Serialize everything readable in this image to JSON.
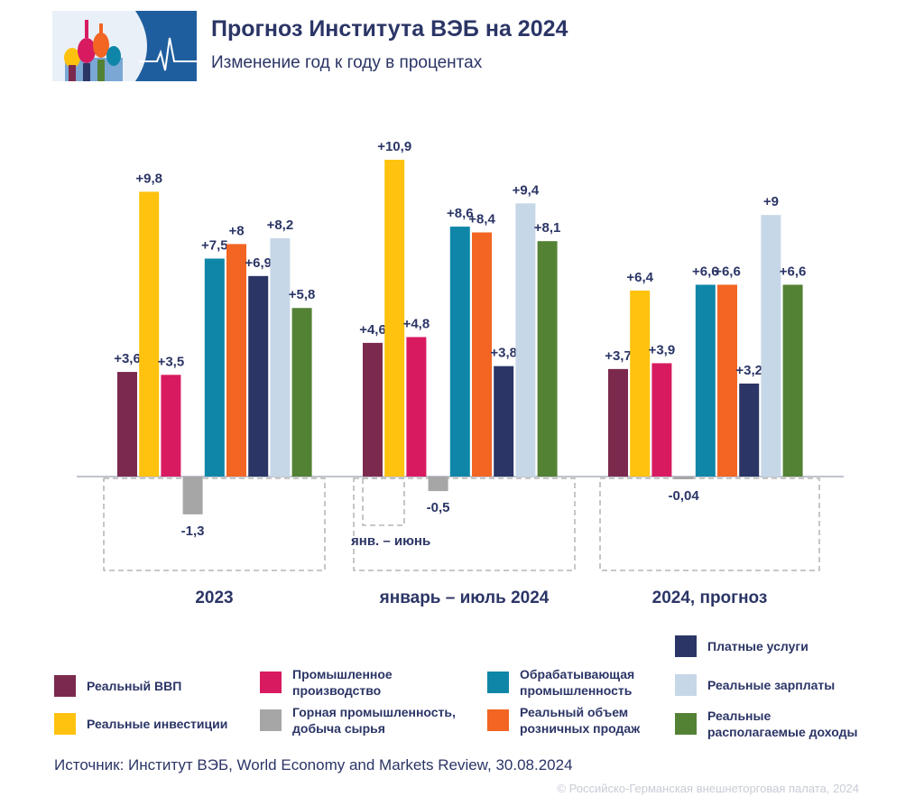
{
  "header": {
    "title": "Прогноз Института ВЭБ на 2024",
    "subtitle": "Изменение год к году в процентах"
  },
  "chart_data": {
    "type": "bar",
    "ylabel": "",
    "categories": [
      "2023",
      "январь – июль 2024",
      "2024, прогноз"
    ],
    "series": [
      {
        "name": "Реальный ВВП",
        "color": "#7b2a4e",
        "values": [
          3.6,
          4.6,
          3.7
        ],
        "labels": [
          "+3,6",
          "+4,6",
          "+3,7"
        ]
      },
      {
        "name": "Реальные инвестиции",
        "color": "#ffc20e",
        "values": [
          9.8,
          10.9,
          6.4
        ],
        "labels": [
          "+9,8",
          "+10,9",
          "+6,4"
        ]
      },
      {
        "name": "Промышленное производство",
        "color": "#d81b60",
        "values": [
          3.5,
          4.8,
          3.9
        ],
        "labels": [
          "+3,5",
          "+4,8",
          "+3,9"
        ]
      },
      {
        "name": "Горная промышленность, добыча сырья",
        "color": "#a6a6a6",
        "values": [
          -1.3,
          -0.5,
          -0.04
        ],
        "labels": [
          "-1,3",
          "-0,5",
          "-0,04"
        ]
      },
      {
        "name": "Обрабатывающая промышленность",
        "color": "#0f86a8",
        "values": [
          7.5,
          8.6,
          6.6
        ],
        "labels": [
          "+7,5",
          "+8,6",
          "+6,6"
        ]
      },
      {
        "name": "Реальный объем розничных продаж",
        "color": "#f26522",
        "values": [
          8,
          8.4,
          6.6
        ],
        "labels": [
          "+8",
          "+8,4",
          "+6,6"
        ]
      },
      {
        "name": "Платные услуги",
        "color": "#2b3566",
        "values": [
          6.9,
          3.8,
          3.2
        ],
        "labels": [
          "+6,9",
          "+3,8",
          "+3,2"
        ]
      },
      {
        "name": "Реальные зарплаты",
        "color": "#c6d7e8",
        "values": [
          8.2,
          9.4,
          9
        ],
        "labels": [
          "+8,2",
          "+9,4",
          "+9"
        ]
      },
      {
        "name": "Реальные располагаемые доходы",
        "color": "#548235",
        "values": [
          5.8,
          8.1,
          6.6
        ],
        "labels": [
          "+5,8",
          "+8,1",
          "+6,6"
        ]
      }
    ],
    "annotation": "янв. – июнь",
    "grid": false,
    "legend_position": "bottom"
  },
  "legend": [
    {
      "label": "Реальный ВВП",
      "color": "#7b2a4e"
    },
    {
      "label": "Реальные инвестиции",
      "color": "#ffc20e"
    },
    {
      "label": "Промышленное\nпроизводство",
      "color": "#d81b60"
    },
    {
      "label": "Горная промышленность,\nдобыча сырья",
      "color": "#a6a6a6"
    },
    {
      "label": "Обрабатывающая\nпромышленность",
      "color": "#0f86a8"
    },
    {
      "label": "Реальный объем\nрозничных продаж",
      "color": "#f26522"
    },
    {
      "label": "Платные услуги",
      "color": "#2b3566"
    },
    {
      "label": "Реальные зарплаты",
      "color": "#c6d7e8"
    },
    {
      "label": "Реальные\nрасполагаемые доходы",
      "color": "#548235"
    }
  ],
  "footer": {
    "source": "Источник: Институт ВЭБ, World Economy and Markets Review, 30.08.2024",
    "copyright": "© Российско-Германская внешнеторговая палата, 2024"
  }
}
